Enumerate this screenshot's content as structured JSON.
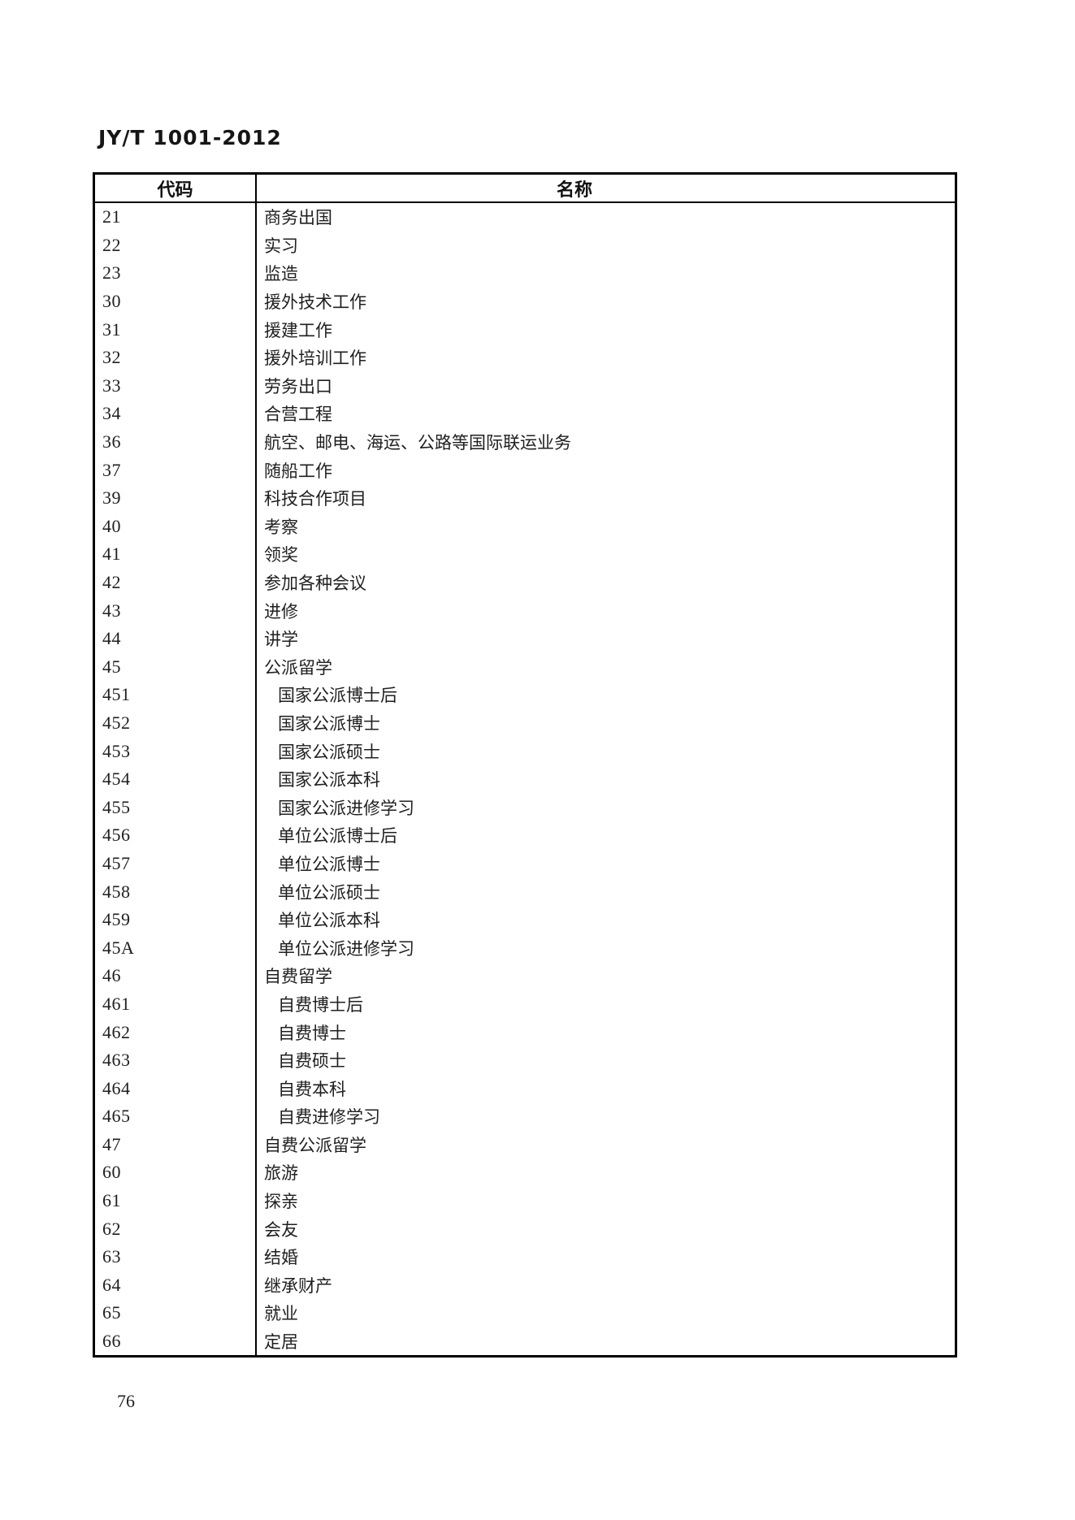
{
  "page": {
    "doc_code": "JY/T 1001-2012",
    "page_number": "76"
  },
  "table": {
    "headers": [
      "代码",
      "名称"
    ],
    "rows": [
      {
        "code": "21",
        "name": "商务出国",
        "indent": false
      },
      {
        "code": "22",
        "name": "实习",
        "indent": false
      },
      {
        "code": "23",
        "name": "监造",
        "indent": false
      },
      {
        "code": "30",
        "name": "援外技术工作",
        "indent": false
      },
      {
        "code": "31",
        "name": "援建工作",
        "indent": false
      },
      {
        "code": "32",
        "name": "援外培训工作",
        "indent": false
      },
      {
        "code": "33",
        "name": "劳务出口",
        "indent": false
      },
      {
        "code": "34",
        "name": "合营工程",
        "indent": false
      },
      {
        "code": "36",
        "name": "航空、邮电、海运、公路等国际联运业务",
        "indent": false
      },
      {
        "code": "37",
        "name": "随船工作",
        "indent": false
      },
      {
        "code": "39",
        "name": "科技合作项目",
        "indent": false
      },
      {
        "code": "40",
        "name": "考察",
        "indent": false
      },
      {
        "code": "41",
        "name": "领奖",
        "indent": false
      },
      {
        "code": "42",
        "name": "参加各种会议",
        "indent": false
      },
      {
        "code": "43",
        "name": "进修",
        "indent": false
      },
      {
        "code": "44",
        "name": "讲学",
        "indent": false
      },
      {
        "code": "45",
        "name": "公派留学",
        "indent": false
      },
      {
        "code": "451",
        "name": "国家公派博士后",
        "indent": true
      },
      {
        "code": "452",
        "name": "国家公派博士",
        "indent": true
      },
      {
        "code": "453",
        "name": "国家公派硕士",
        "indent": true
      },
      {
        "code": "454",
        "name": "国家公派本科",
        "indent": true
      },
      {
        "code": "455",
        "name": "国家公派进修学习",
        "indent": true
      },
      {
        "code": "456",
        "name": "单位公派博士后",
        "indent": true
      },
      {
        "code": "457",
        "name": "单位公派博士",
        "indent": true
      },
      {
        "code": "458",
        "name": "单位公派硕士",
        "indent": true
      },
      {
        "code": "459",
        "name": "单位公派本科",
        "indent": true
      },
      {
        "code": "45A",
        "name": "单位公派进修学习",
        "indent": true
      },
      {
        "code": "46",
        "name": "自费留学",
        "indent": false
      },
      {
        "code": "461",
        "name": "自费博士后",
        "indent": true
      },
      {
        "code": "462",
        "name": "自费博士",
        "indent": true
      },
      {
        "code": "463",
        "name": "自费硕士",
        "indent": true
      },
      {
        "code": "464",
        "name": "自费本科",
        "indent": true
      },
      {
        "code": "465",
        "name": "自费进修学习",
        "indent": true
      },
      {
        "code": "47",
        "name": "自费公派留学",
        "indent": false
      },
      {
        "code": "60",
        "name": "旅游",
        "indent": false
      },
      {
        "code": "61",
        "name": "探亲",
        "indent": false
      },
      {
        "code": "62",
        "name": "会友",
        "indent": false
      },
      {
        "code": "63",
        "name": "结婚",
        "indent": false
      },
      {
        "code": "64",
        "name": "继承财产",
        "indent": false
      },
      {
        "code": "65",
        "name": "就业",
        "indent": false
      },
      {
        "code": "66",
        "name": "定居",
        "indent": false
      }
    ]
  }
}
